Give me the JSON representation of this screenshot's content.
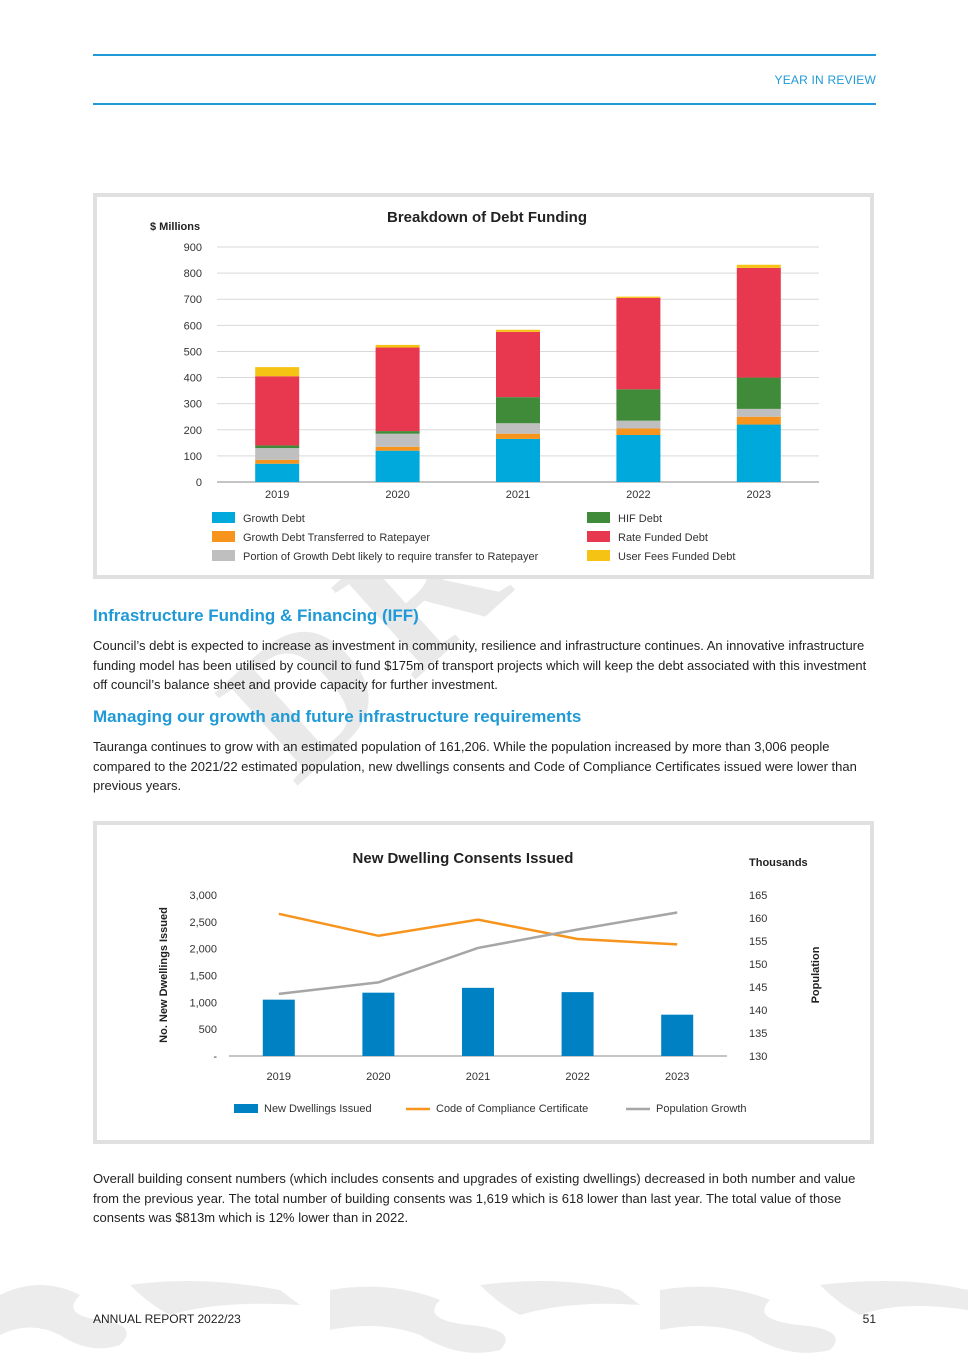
{
  "header": {
    "section": "YEAR IN REVIEW"
  },
  "watermark": "DRAFT",
  "debt_chart": {
    "title": "Breakdown of Debt Funding",
    "unit_label": "$ Millions",
    "y_ticks": [
      "0",
      "100",
      "200",
      "300",
      "400",
      "500",
      "600",
      "700",
      "800",
      "900"
    ],
    "legend": [
      {
        "label": "Growth Debt",
        "color": "#00a9dc"
      },
      {
        "label": "Growth Debt Transferred to Ratepayer",
        "color": "#f7941d"
      },
      {
        "label": "Portion of Growth Debt likely to require transfer to Ratepayer",
        "color": "#bfbfbf"
      },
      {
        "label": "HIF Debt",
        "color": "#3f8b3a"
      },
      {
        "label": "Rate Funded Debt",
        "color": "#e8384f"
      },
      {
        "label": "User Fees Funded Debt",
        "color": "#f5c314"
      }
    ]
  },
  "dwelling_chart": {
    "title": "New Dwelling Consents Issued",
    "left_axis_label": "No. New Dwellings Issued",
    "right_axis_label": "Population",
    "right_unit_label": "Thousands",
    "left_ticks": [
      "-",
      "500",
      "1,000",
      "1,500",
      "2,000",
      "2,500",
      "3,000"
    ],
    "right_ticks": [
      "130",
      "135",
      "140",
      "145",
      "150",
      "155",
      "160",
      "165"
    ],
    "legend": [
      {
        "label": "New Dwellings Issued",
        "color": "#0081c3",
        "kind": "bar"
      },
      {
        "label": "Code of Compliance Certificate",
        "color": "#f7941d",
        "kind": "line"
      },
      {
        "label": "Population Growth",
        "color": "#a6a6a6",
        "kind": "line"
      }
    ]
  },
  "chart_data": [
    {
      "type": "bar",
      "stacked": true,
      "title": "Breakdown of Debt Funding",
      "ylabel": "$ Millions",
      "ylim": [
        0,
        900
      ],
      "categories": [
        "2019",
        "2020",
        "2021",
        "2022",
        "2023"
      ],
      "series": [
        {
          "name": "Growth Debt",
          "color": "#00a9dc",
          "values": [
            70,
            120,
            165,
            180,
            220
          ]
        },
        {
          "name": "Growth Debt Transferred to Ratepayer",
          "color": "#f7941d",
          "values": [
            15,
            15,
            20,
            25,
            30
          ]
        },
        {
          "name": "Portion of Growth Debt likely to require transfer to Ratepayer",
          "color": "#bfbfbf",
          "values": [
            45,
            50,
            40,
            30,
            30
          ]
        },
        {
          "name": "HIF Debt",
          "color": "#3f8b3a",
          "values": [
            10,
            10,
            100,
            120,
            120
          ]
        },
        {
          "name": "Rate Funded Debt",
          "color": "#e8384f",
          "values": [
            265,
            320,
            250,
            350,
            420
          ]
        },
        {
          "name": "User Fees Funded Debt",
          "color": "#f5c314",
          "values": [
            35,
            10,
            8,
            5,
            12
          ]
        }
      ],
      "grid": true,
      "legend_position": "bottom"
    },
    {
      "type": "bar",
      "title": "New Dwelling Consents Issued",
      "categories": [
        "2019",
        "2020",
        "2021",
        "2022",
        "2023"
      ],
      "ylabel": "No. New Dwellings Issued",
      "ylim": [
        0,
        3000
      ],
      "y2label": "Population",
      "y2unit": "Thousands",
      "y2lim": [
        130,
        165
      ],
      "series": [
        {
          "name": "New Dwellings Issued",
          "type": "bar",
          "axis": "left",
          "color": "#0081c3",
          "values": [
            1050,
            1180,
            1270,
            1190,
            770
          ]
        },
        {
          "name": "Code of Compliance Certificate",
          "type": "line",
          "axis": "left",
          "color": "#f7941d",
          "values": [
            2650,
            2240,
            2540,
            2180,
            2080
          ]
        },
        {
          "name": "Population Growth",
          "type": "line",
          "axis": "right",
          "color": "#a6a6a6",
          "values": [
            143.5,
            146,
            153.5,
            157.5,
            161.2
          ]
        }
      ],
      "grid": false,
      "legend_position": "bottom"
    }
  ],
  "sections": [
    {
      "heading": "Infrastructure Funding & Financing (IFF)",
      "body": "Council’s debt is expected to increase as investment in community, resilience and infrastructure continues.  An innovative infrastructure funding model has been utilised by council to fund $175m of transport projects which will keep the debt associated with this investment off council’s balance sheet and provide capacity for further investment."
    },
    {
      "heading": "Managing our growth and future infrastructure requirements",
      "body": "Tauranga continues to grow with an estimated population of 161,206.  While the population increased by more than 3,006 people compared to the 2021/22 estimated population, new dwellings consents and Code of Compliance Certificates issued were lower than previous years."
    }
  ],
  "closing_paragraph": "Overall building consent numbers (which includes consents and upgrades of existing dwellings) decreased in both number and value from the previous year.  The total number of building consents was 1,619 which is 618 lower than last year.  The total value of those consents was $813m which is 12% lower than in 2022.",
  "footer": {
    "report": "ANNUAL REPORT 2022/23",
    "page": "51"
  }
}
